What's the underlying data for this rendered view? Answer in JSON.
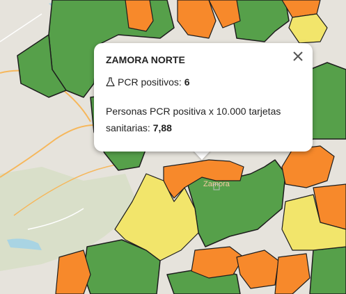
{
  "popup": {
    "title": "ZAMORA NORTE",
    "pcr_label": "PCR positivos:",
    "pcr_value": "6",
    "rate_label": "Personas PCR positiva x 10.000 tarjetas sanitarias:",
    "rate_value": "7,88",
    "close_icon": "close-icon",
    "flask_icon": "flask-icon"
  },
  "map": {
    "city_label": "Zamora",
    "colors": {
      "green": "#56a04a",
      "orange": "#f7892b",
      "yellow": "#f2e56b",
      "base": "#e6e3dc",
      "road": "#f6b75b",
      "water": "#a9d4e3",
      "border": "#1d1d1d"
    }
  }
}
